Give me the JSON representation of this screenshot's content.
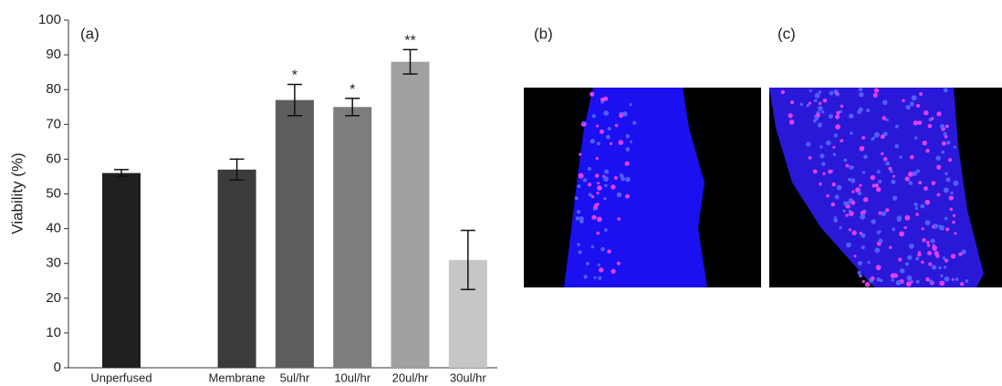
{
  "chart_data": {
    "type": "bar",
    "panel_label": "(a)",
    "y_label": "Viability (%)",
    "categories": [
      "Unperfused",
      null,
      "Membrane",
      "5ul/hr",
      "10ul/hr",
      "20ul/hr",
      "30ul/hr"
    ],
    "values": [
      56,
      null,
      57,
      77,
      75,
      88,
      31
    ],
    "errors": [
      1,
      null,
      3,
      4.5,
      2.5,
      3.5,
      8.5
    ],
    "significance": [
      null,
      null,
      null,
      "*",
      "*",
      "**",
      null
    ],
    "colors": [
      "#202020",
      null,
      "#3b3b3b",
      "#5d5d5d",
      "#7d7d7d",
      "#a0a0a0",
      "#c6c6c6"
    ],
    "ylim": [
      0,
      100
    ],
    "yticks": [
      0,
      10,
      20,
      30,
      40,
      50,
      60,
      70,
      80,
      90,
      100
    ]
  },
  "images": [
    {
      "label": "(b)"
    },
    {
      "label": "(c)"
    }
  ]
}
